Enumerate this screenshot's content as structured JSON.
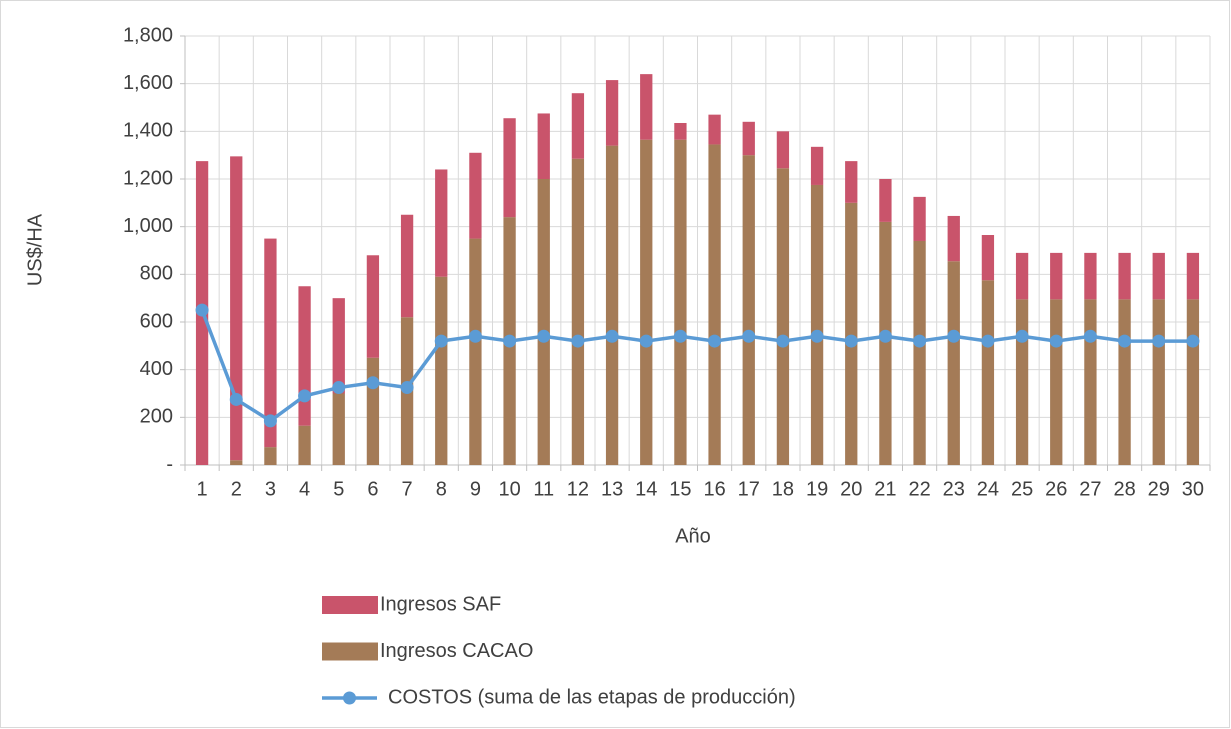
{
  "chart_data": {
    "type": "bar",
    "stacked": true,
    "x_label": "Año",
    "y_label": "US$/HA",
    "categories": [
      "1",
      "2",
      "3",
      "4",
      "5",
      "6",
      "7",
      "8",
      "9",
      "10",
      "11",
      "12",
      "13",
      "14",
      "15",
      "16",
      "17",
      "18",
      "19",
      "20",
      "21",
      "22",
      "23",
      "24",
      "25",
      "26",
      "27",
      "28",
      "29",
      "30"
    ],
    "series": [
      {
        "name": "Ingresos SAF",
        "type": "bar",
        "color": "#c9546b",
        "values": [
          1275,
          1275,
          875,
          585,
          400,
          430,
          430,
          450,
          360,
          415,
          275,
          275,
          275,
          275,
          70,
          125,
          140,
          155,
          160,
          175,
          180,
          185,
          190,
          190,
          195,
          195,
          195,
          195,
          195,
          195
        ]
      },
      {
        "name": "Ingresos CACAO",
        "type": "bar",
        "color": "#a47b57",
        "values": [
          0,
          20,
          75,
          165,
          300,
          450,
          620,
          790,
          950,
          1040,
          1200,
          1285,
          1340,
          1365,
          1365,
          1345,
          1300,
          1245,
          1175,
          1100,
          1020,
          940,
          855,
          775,
          695,
          695,
          695,
          695,
          695,
          695
        ]
      },
      {
        "name": "COSTOS (suma de las etapas de producción)",
        "type": "line",
        "color": "#5b9bd5",
        "values": [
          650,
          275,
          185,
          290,
          325,
          345,
          325,
          520,
          540,
          520,
          540,
          520,
          540,
          520,
          540,
          520,
          540,
          520,
          540,
          520,
          540,
          520,
          540,
          520,
          540,
          520,
          540,
          520,
          520,
          520
        ]
      }
    ],
    "ylim": [
      0,
      1800
    ],
    "yticks": [
      {
        "value": 0,
        "label": "-"
      },
      200,
      400,
      600,
      800,
      {
        "value": 1000,
        "label": "1,000"
      },
      {
        "value": 1200,
        "label": "1,200"
      },
      {
        "value": 1400,
        "label": "1,400"
      },
      {
        "value": 1600,
        "label": "1,600"
      },
      {
        "value": 1800,
        "label": "1,800"
      }
    ],
    "grid": true,
    "legend": "bottom"
  }
}
